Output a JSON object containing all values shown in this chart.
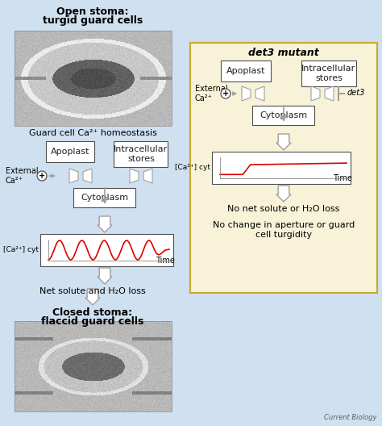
{
  "bg_color": "#cfe0f0",
  "right_panel_color": "#f7f2d8",
  "right_panel_border": "#c8a832",
  "white": "#ffffff",
  "black": "#000000",
  "red": "#dd0000",
  "arrow_color": "#c0c0c0",
  "arrow_edge": "#a0a0a0",
  "box_edge": "#505050",
  "text_color": "#202020",
  "img_color": "#b8b8b8",
  "title_left_line1": "Open stoma:",
  "title_left_line2": "turgid guard cells",
  "title_right": "det3 mutant",
  "subtitle_left": "Guard cell Ca²⁺ homeostasis",
  "box1_left": "Apoplast",
  "box2_left": "Intracellular\nstores",
  "box1_right": "Apoplast",
  "box2_right": "Intracellular\nstores",
  "ext_ca_label": "External\nCa²⁺",
  "cytoplasm_label": "Cytoplasm",
  "ca_cyt_label": "[Ca²⁺] cyt",
  "time_label": "Time",
  "net_solute_label": "Net solute and H₂O loss",
  "no_net_label": "No net solute or H₂O loss",
  "no_change_label": "No change in aperture or guard\ncell turgidity",
  "closed_label_line1": "Closed stoma:",
  "closed_label_line2": "flaccid guard cells",
  "det3_label": "det3",
  "current_biology": "Current Biology",
  "plus_label": "+"
}
